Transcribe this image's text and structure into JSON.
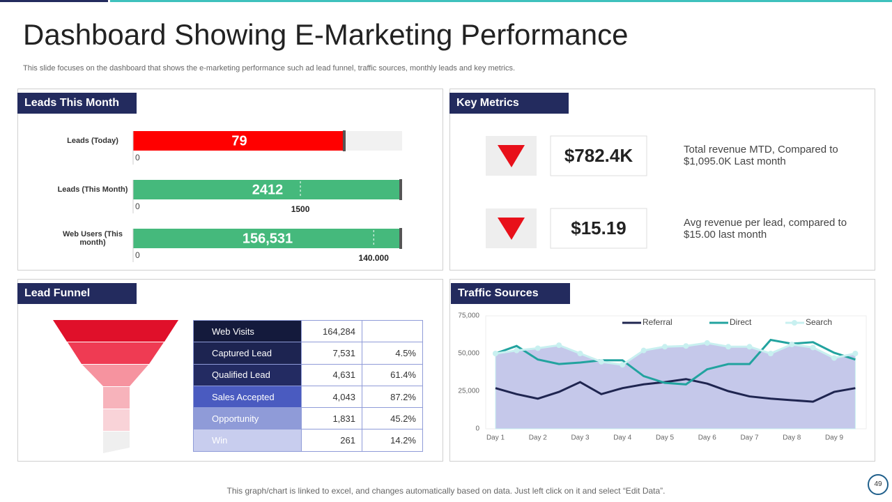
{
  "title": "Dashboard Showing E-Marketing Performance",
  "subtitle": "This slide focuses on the dashboard that shows the e-marketing performance such ad lead funnel, traffic sources, monthly leads and key metrics.",
  "leads": {
    "heading": "Leads This Month",
    "bars": [
      {
        "label": "Leads (Today)",
        "value": 79,
        "xlim": [
          0,
          100
        ],
        "xticks": [
          0
        ],
        "color": "#ff0000"
      },
      {
        "label": "Leads (This Month)",
        "value": 2412,
        "xlim": [
          0,
          2412
        ],
        "xticks": [
          0
        ],
        "target": 1500,
        "color": "#45b97c"
      },
      {
        "label": "Web Users (This month)",
        "value": 156531,
        "value_label": "156,531",
        "xlim": [
          0,
          156531
        ],
        "xticks": [
          0
        ],
        "target": {
          "value": 140000,
          "label": "140.000"
        },
        "color": "#45b97c"
      }
    ]
  },
  "key_metrics": {
    "heading": "Key Metrics",
    "items": [
      {
        "value": "$782.4K",
        "description": "Total revenue MTD, Compared to $1,095.0K Last month"
      },
      {
        "value": "$15.19",
        "description": "Avg revenue per lead, compared to $15.00 last month"
      }
    ]
  },
  "lead_funnel": {
    "heading": "Lead Funnel",
    "rows": [
      [
        "Web Visits",
        "164,284"
      ],
      [
        "Captured Lead",
        "7,531",
        "4.5%"
      ],
      [
        "Qualified Lead",
        "4,631",
        "61.4%"
      ],
      [
        "Sales Accepted",
        "4,043",
        "87.2%"
      ],
      [
        "Opportunity",
        "1,831",
        "45.2%"
      ],
      [
        "Win",
        "261",
        "14.2%"
      ]
    ]
  },
  "traffic_sources": {
    "heading": "Traffic Sources"
  },
  "chart_data": {
    "type": "line",
    "categories": [
      "Day 1",
      null,
      "Day 2",
      null,
      "Day 3",
      null,
      "Day 4",
      null,
      "Day 5",
      null,
      "Day 6",
      null,
      "Day 7",
      null,
      "Day 8",
      null,
      "Day 9",
      null
    ],
    "series": [
      {
        "name": "Referral",
        "color": "#1f2550",
        "values": [
          27000,
          23000,
          20000,
          24500,
          31000,
          23000,
          27000,
          29500,
          31000,
          33000,
          30000,
          25000,
          21500,
          20000,
          19000,
          18000,
          24500,
          27000
        ]
      },
      {
        "name": "Direct",
        "color": "#22a39f",
        "values": [
          50000,
          55000,
          46000,
          43000,
          44000,
          45500,
          45500,
          35000,
          30500,
          29500,
          39500,
          43000,
          43000,
          59000,
          56500,
          57500,
          50500,
          46000
        ]
      },
      {
        "name": "Search",
        "color": "#c8f0f0",
        "area_color": "#c5c8ea",
        "area": true,
        "markers": true,
        "values": [
          50000,
          52000,
          53500,
          55500,
          50000,
          44500,
          42500,
          52000,
          54500,
          55000,
          57000,
          54500,
          54500,
          50000,
          56000,
          54000,
          47000,
          50000
        ]
      }
    ],
    "ylim": [
      0,
      75000
    ],
    "yticks": [
      0,
      {
        "value": 25000,
        "label": "25,000"
      },
      {
        "value": 50000,
        "label": "50,000"
      },
      {
        "value": 75000,
        "label": "75,000"
      }
    ],
    "legend": "top-right"
  },
  "footer": "This graph/chart is linked to excel, and changes automatically based on data. Just left click on it and select “Edit Data”.",
  "page_number": "49"
}
